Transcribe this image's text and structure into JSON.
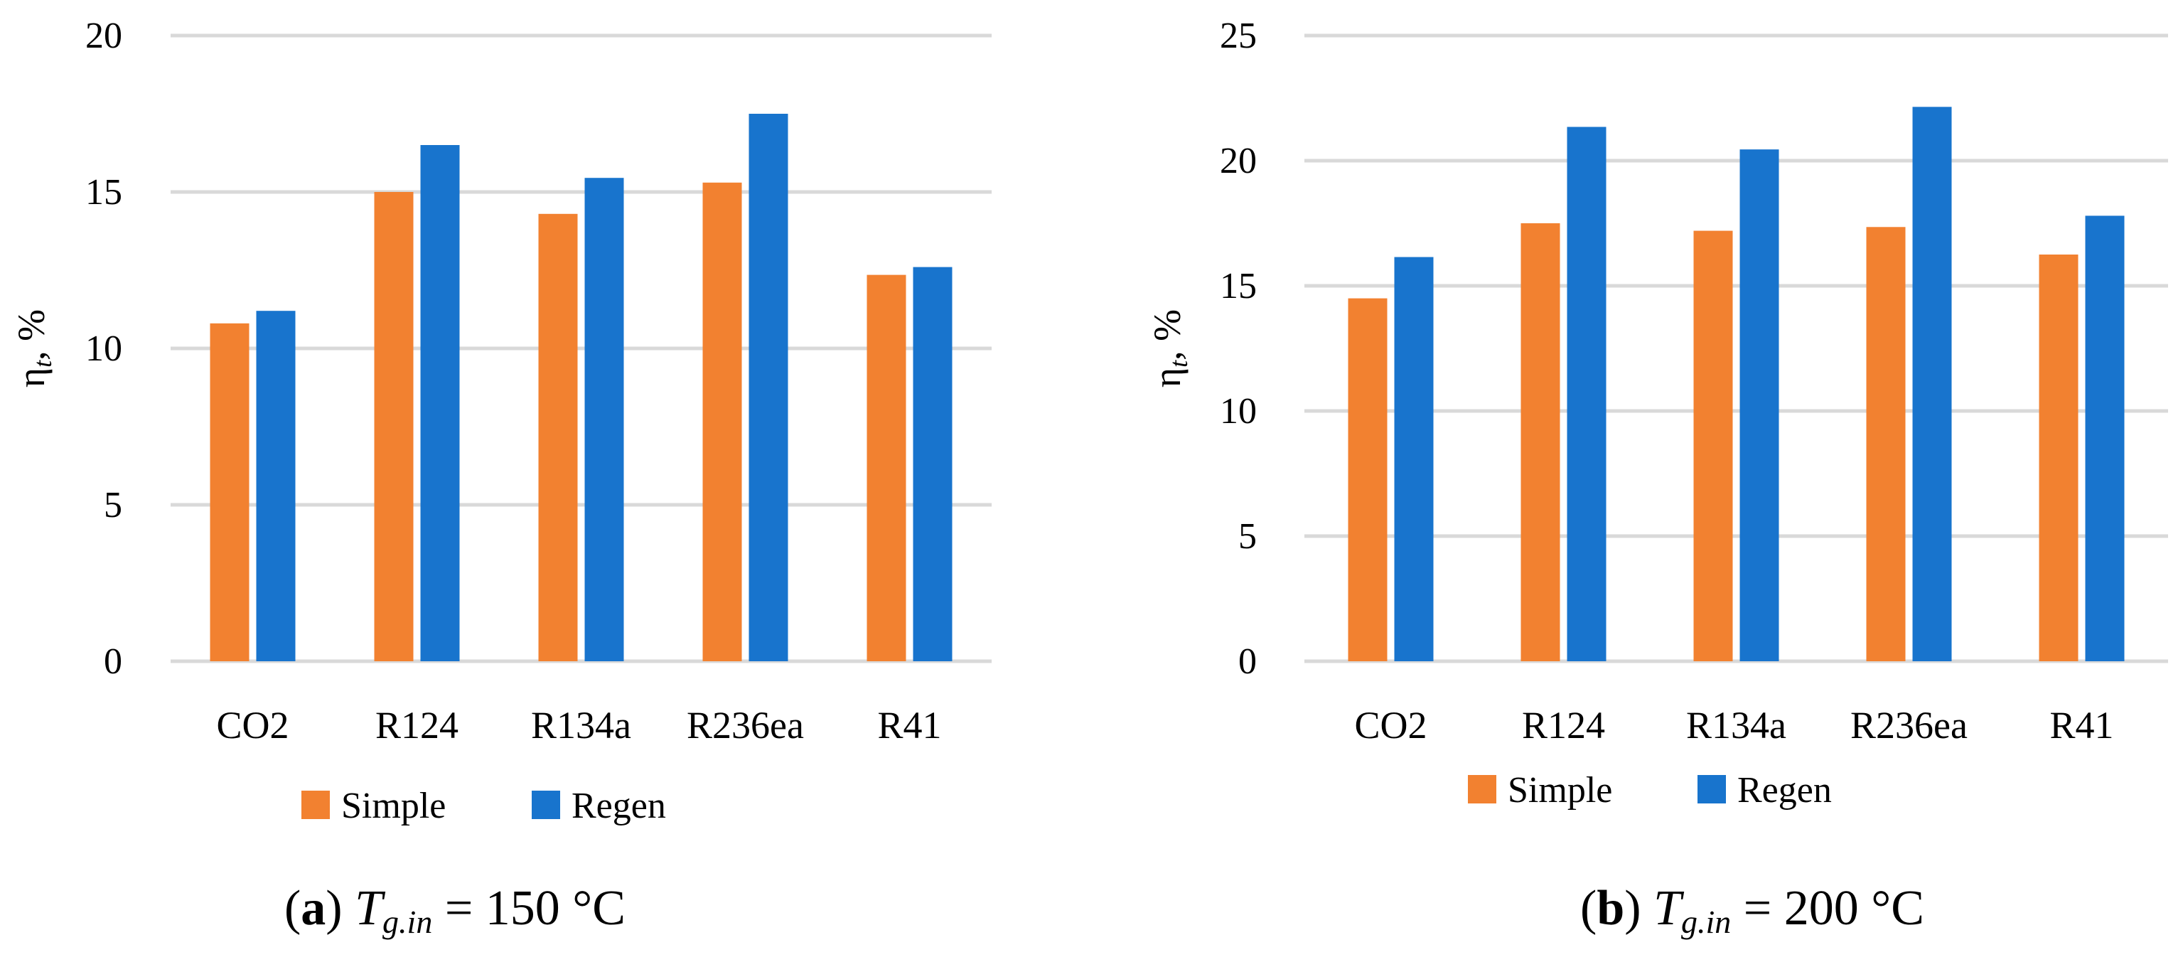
{
  "figure": {
    "legend_labels": [
      "Simple",
      "Regen"
    ],
    "colors": {
      "simple": "#F28130",
      "regen": "#1874CD",
      "gridline": "#D9D9D9",
      "text": "#000000"
    }
  },
  "chart_data": [
    {
      "type": "bar",
      "panel": "a",
      "caption": {
        "letter": "a",
        "variable": "T",
        "subscript": "g.in",
        "value_text": "= 150 °C"
      },
      "title": "",
      "xlabel": "",
      "ylabel": {
        "symbol": "η",
        "subscript": "t",
        "unit_text": ", %"
      },
      "categories": [
        "CO2",
        "R124",
        "R134a",
        "R236ea",
        "R41"
      ],
      "series": [
        {
          "name": "Simple",
          "values": [
            10.8,
            15.0,
            14.3,
            15.3,
            12.35
          ]
        },
        {
          "name": "Regen",
          "values": [
            11.2,
            16.5,
            15.45,
            17.5,
            12.6
          ]
        }
      ],
      "ylim": [
        0,
        20
      ],
      "yticks": [
        0,
        5,
        10,
        15,
        20
      ],
      "grid": true,
      "legend_position": "bottom"
    },
    {
      "type": "bar",
      "panel": "b",
      "caption": {
        "letter": "b",
        "variable": "T",
        "subscript": "g.in",
        "value_text": "= 200 °C"
      },
      "title": "",
      "xlabel": "",
      "ylabel": {
        "symbol": "η",
        "subscript": "t",
        "unit_text": ", %"
      },
      "categories": [
        "CO2",
        "R124",
        "R134a",
        "R236ea",
        "R41"
      ],
      "series": [
        {
          "name": "Simple",
          "values": [
            14.5,
            17.5,
            17.2,
            17.35,
            16.25
          ]
        },
        {
          "name": "Regen",
          "values": [
            16.15,
            21.35,
            20.45,
            22.15,
            17.8
          ]
        }
      ],
      "ylim": [
        0,
        25
      ],
      "yticks": [
        0,
        5,
        10,
        15,
        20,
        25
      ],
      "grid": true,
      "legend_position": "bottom"
    }
  ]
}
